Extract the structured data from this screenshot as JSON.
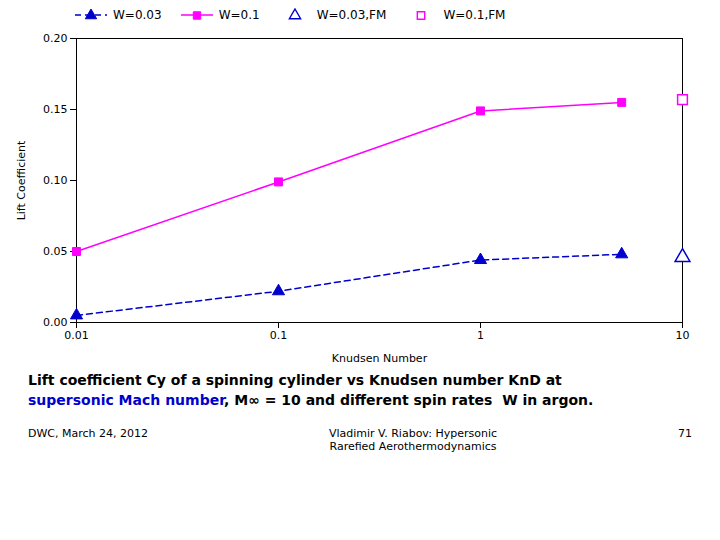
{
  "chart_data": {
    "type": "line",
    "xlabel": "Knudsen Number",
    "ylabel": "Lift Coefficient",
    "log": "x",
    "xlim": [
      0.01,
      10
    ],
    "xticks": [
      0.01,
      0.1,
      1,
      10
    ],
    "ylim": [
      0,
      0.2
    ],
    "yticks": [
      {
        "value": 0,
        "label": "0.00"
      },
      {
        "value": 0.05,
        "label": "0.05"
      },
      {
        "value": 0.1,
        "label": "0.10"
      },
      {
        "value": 0.15,
        "label": "0.15"
      },
      {
        "value": 0.2,
        "label": "0.20"
      }
    ],
    "grid": false,
    "legend": "upper left",
    "series": [
      {
        "name": "W=0.03",
        "type": "line",
        "color": "#0000CC",
        "marker": "triangle",
        "line_style": "dashed",
        "x": [
          0.01,
          0.1,
          1.0,
          5.0
        ],
        "values": [
          0.005,
          0.022,
          0.044,
          0.048
        ]
      },
      {
        "name": "W=0.1",
        "type": "line",
        "color": "#FF00FF",
        "marker": "square",
        "line_style": "solid",
        "x": [
          0.01,
          0.1,
          1.0,
          5.0
        ],
        "values": [
          0.05,
          0.099,
          0.149,
          0.155
        ]
      },
      {
        "name": "W=0.03,FM",
        "type": "scatter",
        "color": "#0000CC",
        "marker": "triangle-open",
        "x": [
          10.0
        ],
        "values": [
          0.046
        ]
      },
      {
        "name": "W=0.1,FM",
        "type": "scatter",
        "color": "#FF00FF",
        "marker": "square-open",
        "x": [
          10.0
        ],
        "values": [
          0.157
        ]
      }
    ],
    "annotations": [
      {
        "text": "Lift coefficient Cy of a spinning cylinder vs Knudsen number KnD at"
      },
      {
        "text": "supersonic Mach number",
        "color": "#0000CC"
      },
      {
        "text": ", M∞ = 10 and different spin rates  W in argon."
      },
      {
        "text": "DWC, March 24, 2012"
      },
      {
        "text": "Vladimir V. Riabov: Hypersonic"
      },
      {
        "text": "Rarefied Aerothermodynamics"
      },
      {
        "text": "71"
      }
    ]
  }
}
